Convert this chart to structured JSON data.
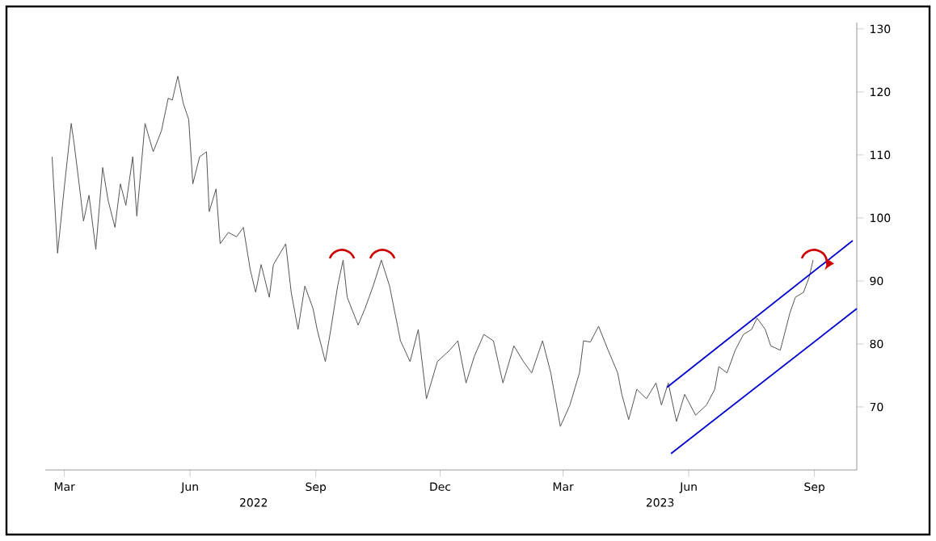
{
  "chart_data": {
    "type": "line",
    "x": [
      "2022-03-06",
      "2022-03-10",
      "2022-03-15",
      "2022-03-20",
      "2022-03-22",
      "2022-03-26",
      "2022-03-29",
      "2022-04-02",
      "2022-04-07",
      "2022-04-12",
      "2022-04-16",
      "2022-04-21",
      "2022-04-25",
      "2022-04-29",
      "2022-05-04",
      "2022-05-07",
      "2022-05-13",
      "2022-05-19",
      "2022-05-25",
      "2022-05-30",
      "2022-06-02",
      "2022-06-06",
      "2022-06-10",
      "2022-06-14",
      "2022-06-17",
      "2022-06-22",
      "2022-06-27",
      "2022-06-29",
      "2022-07-04",
      "2022-07-07",
      "2022-07-13",
      "2022-07-19",
      "2022-07-24",
      "2022-07-29",
      "2022-08-02",
      "2022-08-06",
      "2022-08-12",
      "2022-08-15",
      "2022-08-24",
      "2022-08-28",
      "2022-09-02",
      "2022-09-07",
      "2022-09-13",
      "2022-09-16",
      "2022-09-22",
      "2022-09-26",
      "2022-10-01",
      "2022-10-05",
      "2022-10-08",
      "2022-10-16",
      "2022-10-21",
      "2022-10-27",
      "2022-11-02",
      "2022-11-08",
      "2022-11-16",
      "2022-11-23",
      "2022-11-29",
      "2022-12-05",
      "2022-12-13",
      "2022-12-22",
      "2022-12-28",
      "2023-01-03",
      "2023-01-09",
      "2023-01-16",
      "2023-01-23",
      "2023-01-30",
      "2023-02-07",
      "2023-02-14",
      "2023-02-20",
      "2023-02-28",
      "2023-03-06",
      "2023-03-13",
      "2023-03-20",
      "2023-03-27",
      "2023-03-30",
      "2023-04-04",
      "2023-04-10",
      "2023-04-17",
      "2023-04-24",
      "2023-04-27",
      "2023-05-02",
      "2023-05-08",
      "2023-05-15",
      "2023-05-22",
      "2023-05-26",
      "2023-05-31",
      "2023-06-06",
      "2023-06-12",
      "2023-06-20",
      "2023-06-28",
      "2023-07-04",
      "2023-07-07",
      "2023-07-13",
      "2023-07-19",
      "2023-07-25",
      "2023-07-31",
      "2023-08-04",
      "2023-08-10",
      "2023-08-14",
      "2023-08-21",
      "2023-08-24",
      "2023-08-28",
      "2023-09-01",
      "2023-09-07",
      "2023-09-11",
      "2023-09-14"
    ],
    "series": [
      {
        "color": "#555555",
        "values": [
          109.7,
          94.4,
          105,
          115,
          112,
          105,
          99.5,
          103.6,
          95,
          108,
          102.8,
          98.5,
          105.4,
          102,
          109.7,
          100.3,
          115,
          110.5,
          113.8,
          119,
          118.7,
          122.5,
          118.2,
          115.6,
          105.4,
          109.7,
          110.5,
          101,
          104.6,
          95.9,
          97.7,
          97,
          98.5,
          91.8,
          88.2,
          92.6,
          87.4,
          92.6,
          95.9,
          88.2,
          82.3,
          89.2,
          85.6,
          82.3,
          77.2,
          82.3,
          89.2,
          93.3,
          87.4,
          83,
          85.6,
          89.2,
          93.3,
          89.2,
          80.5,
          77.2,
          82.3,
          71.3,
          77.2,
          79,
          80.5,
          73.8,
          78,
          81.5,
          80.5,
          73.8,
          79.7,
          77.2,
          75.4,
          80.5,
          75.4,
          66.9,
          70.3,
          75.4,
          80.5,
          80.3,
          82.8,
          79,
          75.4,
          72,
          68,
          72.8,
          71.3,
          73.8,
          70.3,
          73.8,
          67.7,
          72,
          68.7,
          70.3,
          72.8,
          76.4,
          75.4,
          79,
          81.5,
          82.3,
          84.1,
          82.3,
          79.7,
          79,
          81.5,
          84.9,
          87.4,
          88.2,
          90.5,
          93.3
        ]
      },
      {
        "type": "line",
        "color": "#0000cc",
        "x": [
          "2023-05-30",
          "2023-10-13"
        ],
        "values": [
          73.1,
          96.4
        ]
      },
      {
        "type": "line",
        "color": "#0000cc",
        "x": [
          "2023-06-02",
          "2023-10-16"
        ],
        "values": [
          62.6,
          85.6
        ]
      }
    ],
    "xlim": [
      "2022-03-01",
      "2023-10-16"
    ],
    "xticks": [
      {
        "value": "2022-03-15",
        "label": "Mar"
      },
      {
        "value": "2022-06-15",
        "label": "Jun"
      },
      {
        "value": "2022-09-15",
        "label": "Sep"
      },
      {
        "value": "2022-12-15",
        "label": "Dec"
      },
      {
        "value": "2023-03-15",
        "label": "Mar"
      },
      {
        "value": "2023-06-15",
        "label": "Jun"
      },
      {
        "value": "2023-09-15",
        "label": "Sep"
      }
    ],
    "ylim": [
      60,
      131
    ],
    "yticks": [
      70,
      80,
      90,
      100,
      110,
      120,
      130
    ],
    "annotations": [
      "2022",
      "2023"
    ],
    "grid": false,
    "marker": "none",
    "line_style": "solid"
  }
}
